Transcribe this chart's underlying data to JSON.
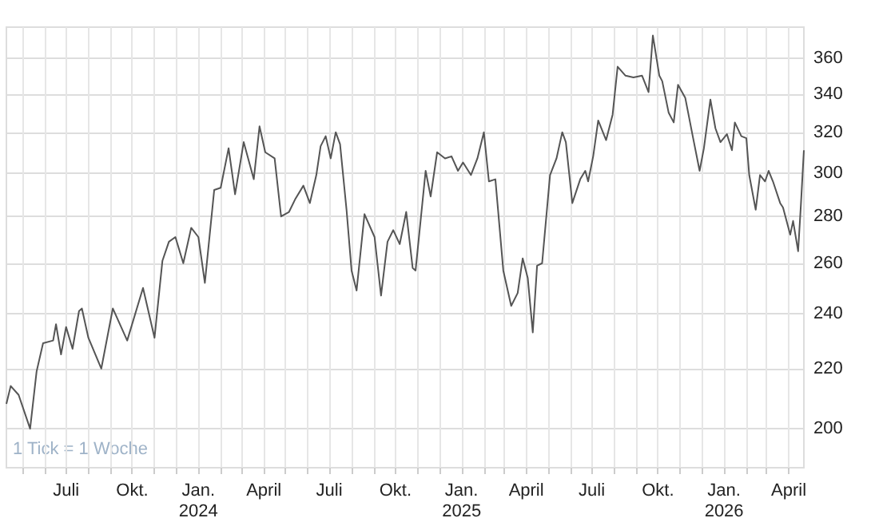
{
  "chart_data": {
    "type": "line",
    "log": "y",
    "grid": true,
    "annotations": [
      "1 Tick = 1 Woche"
    ],
    "xlim": [
      "2023-04-09",
      "2026-04-22"
    ],
    "xticks": [
      {
        "value": "2023-05-01",
        "label": null
      },
      {
        "value": "2023-06-01",
        "label": null
      },
      {
        "value": "2023-07-01",
        "label": "Juli"
      },
      {
        "value": "2023-08-01",
        "label": null
      },
      {
        "value": "2023-09-01",
        "label": null
      },
      {
        "value": "2023-10-01",
        "label": "Okt."
      },
      {
        "value": "2023-11-01",
        "label": null
      },
      {
        "value": "2023-12-01",
        "label": null
      },
      {
        "value": "2024-01-01",
        "label": "Jan.\n2024"
      },
      {
        "value": "2024-02-01",
        "label": null
      },
      {
        "value": "2024-03-01",
        "label": null
      },
      {
        "value": "2024-04-01",
        "label": "April"
      },
      {
        "value": "2024-05-01",
        "label": null
      },
      {
        "value": "2024-06-01",
        "label": null
      },
      {
        "value": "2024-07-01",
        "label": "Juli"
      },
      {
        "value": "2024-08-01",
        "label": null
      },
      {
        "value": "2024-09-01",
        "label": null
      },
      {
        "value": "2024-10-01",
        "label": "Okt."
      },
      {
        "value": "2024-11-01",
        "label": null
      },
      {
        "value": "2024-12-01",
        "label": null
      },
      {
        "value": "2025-01-01",
        "label": "Jan.\n2025"
      },
      {
        "value": "2025-02-01",
        "label": null
      },
      {
        "value": "2025-03-01",
        "label": null
      },
      {
        "value": "2025-04-01",
        "label": "April"
      },
      {
        "value": "2025-05-01",
        "label": null
      },
      {
        "value": "2025-06-01",
        "label": null
      },
      {
        "value": "2025-07-01",
        "label": "Juli"
      },
      {
        "value": "2025-08-01",
        "label": null
      },
      {
        "value": "2025-09-01",
        "label": null
      },
      {
        "value": "2025-10-01",
        "label": "Okt."
      },
      {
        "value": "2025-11-01",
        "label": null
      },
      {
        "value": "2025-12-01",
        "label": null
      },
      {
        "value": "2026-01-01",
        "label": "Jan.\n2026"
      },
      {
        "value": "2026-02-01",
        "label": null
      },
      {
        "value": "2026-03-01",
        "label": null
      },
      {
        "value": "2026-04-01",
        "label": "April"
      }
    ],
    "ylim": [
      188,
      378
    ],
    "yticks": [
      200,
      220,
      240,
      260,
      280,
      300,
      320,
      340,
      360
    ],
    "series": [
      {
        "color": "#555555",
        "x": [
          "2023-04-09",
          "2023-04-15",
          "2023-04-26",
          "2023-05-12",
          "2023-05-21",
          "2023-05-30",
          "2023-06-13",
          "2023-06-17",
          "2023-06-24",
          "2023-07-01",
          "2023-07-10",
          "2023-07-19",
          "2023-07-23",
          "2023-08-01",
          "2023-08-19",
          "2023-09-04",
          "2023-09-24",
          "2023-10-16",
          "2023-11-01",
          "2023-11-12",
          "2023-11-21",
          "2023-11-30",
          "2023-12-11",
          "2023-12-22",
          "2024-01-01",
          "2024-01-10",
          "2024-01-23",
          "2024-02-01",
          "2024-02-12",
          "2024-02-21",
          "2024-03-04",
          "2024-03-18",
          "2024-03-26",
          "2024-04-03",
          "2024-04-16",
          "2024-04-25",
          "2024-05-06",
          "2024-05-15",
          "2024-05-26",
          "2024-06-04",
          "2024-06-13",
          "2024-06-19",
          "2024-06-26",
          "2024-07-03",
          "2024-07-10",
          "2024-07-16",
          "2024-07-25",
          "2024-08-01",
          "2024-08-08",
          "2024-08-19",
          "2024-09-02",
          "2024-09-06",
          "2024-09-11",
          "2024-09-20",
          "2024-09-28",
          "2024-10-07",
          "2024-10-16",
          "2024-10-25",
          "2024-10-29",
          "2024-11-12",
          "2024-11-19",
          "2024-11-28",
          "2024-12-09",
          "2024-12-18",
          "2024-12-27",
          "2025-01-03",
          "2025-01-14",
          "2025-01-23",
          "2025-02-01",
          "2025-02-08",
          "2025-02-17",
          "2025-02-28",
          "2025-03-11",
          "2025-03-20",
          "2025-03-27",
          "2025-04-03",
          "2025-04-10",
          "2025-04-16",
          "2025-04-23",
          "2025-05-04",
          "2025-05-13",
          "2025-05-21",
          "2025-05-26",
          "2025-06-04",
          "2025-06-15",
          "2025-06-22",
          "2025-06-26",
          "2025-07-03",
          "2025-07-10",
          "2025-07-21",
          "2025-07-30",
          "2025-08-06",
          "2025-08-17",
          "2025-08-28",
          "2025-09-09",
          "2025-09-18",
          "2025-09-24",
          "2025-10-03",
          "2025-10-07",
          "2025-10-16",
          "2025-10-23",
          "2025-10-29",
          "2025-11-08",
          "2025-11-19",
          "2025-11-28",
          "2025-12-04",
          "2025-12-13",
          "2025-12-20",
          "2025-12-27",
          "2026-01-05",
          "2026-01-12",
          "2026-01-16",
          "2026-01-25",
          "2026-02-01",
          "2026-02-05",
          "2026-02-14",
          "2026-02-20",
          "2026-02-27",
          "2026-03-04",
          "2026-03-10",
          "2026-03-20",
          "2026-03-24",
          "2026-04-03",
          "2026-04-07",
          "2026-04-14",
          "2026-04-18",
          "2026-04-22"
        ],
        "values": [
          208,
          214,
          211,
          200,
          219,
          229,
          230,
          236,
          225,
          235,
          227,
          241,
          242,
          231,
          220,
          242,
          230,
          250,
          231,
          261,
          269,
          271,
          260,
          275,
          271,
          252,
          292,
          293,
          312,
          290,
          315,
          297,
          323,
          310,
          307,
          280,
          282,
          288,
          294,
          286,
          299,
          313,
          318,
          307,
          320,
          314,
          283,
          257,
          249,
          281,
          271,
          260,
          247,
          269,
          274,
          268,
          282,
          258,
          257,
          301,
          289,
          310,
          307,
          308,
          301,
          305,
          299,
          307,
          320,
          296,
          297,
          257,
          243,
          248,
          262,
          254,
          233,
          259,
          260,
          299,
          307,
          320,
          315,
          286,
          297,
          301,
          296,
          308,
          326,
          316,
          329,
          355,
          350,
          349,
          350,
          341,
          373,
          350,
          347,
          330,
          325,
          345,
          338,
          317,
          301,
          312,
          337,
          322,
          315,
          319,
          311,
          325,
          318,
          317,
          299,
          283,
          299,
          296,
          301,
          296,
          286,
          284,
          272,
          278,
          265,
          286,
          311
        ]
      }
    ]
  }
}
